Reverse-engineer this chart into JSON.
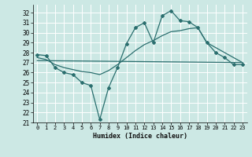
{
  "xlabel": "Humidex (Indice chaleur)",
  "background_color": "#cce8e4",
  "grid_color": "#ffffff",
  "line_color": "#2a6e6e",
  "xlim": [
    -0.5,
    23.5
  ],
  "ylim": [
    21,
    32.8
  ],
  "yticks": [
    21,
    22,
    23,
    24,
    25,
    26,
    27,
    28,
    29,
    30,
    31,
    32
  ],
  "xticks": [
    0,
    1,
    2,
    3,
    4,
    5,
    6,
    7,
    8,
    9,
    10,
    11,
    12,
    13,
    14,
    15,
    16,
    17,
    18,
    19,
    20,
    21,
    22,
    23
  ],
  "series_jagged": {
    "x": [
      0,
      1,
      2,
      3,
      4,
      5,
      6,
      7,
      8,
      9,
      10,
      11,
      12,
      13,
      14,
      15,
      16,
      17,
      18,
      19,
      20,
      21,
      22,
      23
    ],
    "y": [
      27.8,
      27.7,
      26.5,
      26.0,
      25.8,
      25.0,
      24.7,
      21.3,
      24.5,
      26.5,
      28.9,
      30.5,
      31.0,
      29.0,
      31.7,
      32.2,
      31.2,
      31.1,
      30.5,
      29.0,
      28.0,
      27.5,
      26.8,
      26.8
    ]
  },
  "series_smooth": {
    "x": [
      0,
      1,
      2,
      3,
      4,
      5,
      6,
      7,
      8,
      9,
      10,
      11,
      12,
      13,
      14,
      15,
      16,
      17,
      18,
      19,
      20,
      21,
      22,
      23
    ],
    "y": [
      27.5,
      27.3,
      26.8,
      26.5,
      26.3,
      26.1,
      26.0,
      25.8,
      26.2,
      26.8,
      27.5,
      28.2,
      28.8,
      29.2,
      29.7,
      30.1,
      30.2,
      30.4,
      30.5,
      29.0,
      28.5,
      28.0,
      27.5,
      27.0
    ]
  },
  "series_flat": {
    "x": [
      0,
      23
    ],
    "y": [
      27.2,
      27.0
    ]
  }
}
